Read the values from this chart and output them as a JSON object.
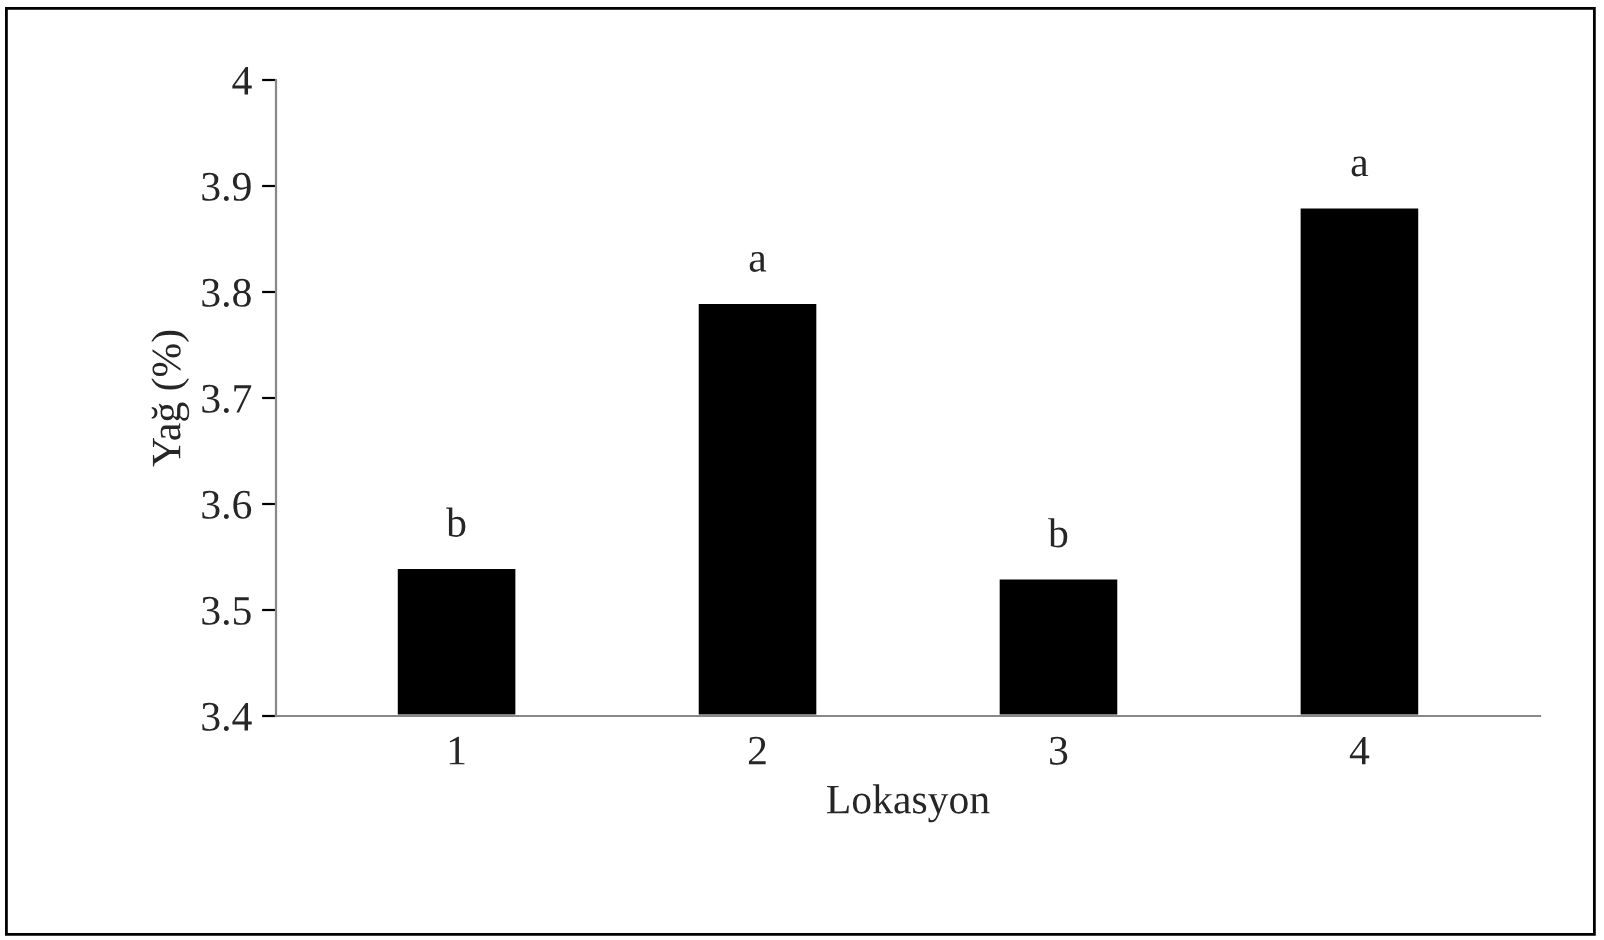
{
  "chart_data": {
    "type": "bar",
    "xlabel": "Lokasyon",
    "ylabel": "Yağ (%)",
    "categories": [
      "1",
      "2",
      "3",
      "4"
    ],
    "values": [
      3.54,
      3.79,
      3.53,
      3.88
    ],
    "color": "#000000",
    "ylim": [
      3.4,
      4
    ],
    "yticks": [
      3.4,
      3.5,
      3.6,
      3.7,
      3.8,
      3.9,
      4
    ],
    "grid": false,
    "legend": false,
    "annotations": [
      {
        "text": "b",
        "x": "1",
        "y": 3.54
      },
      {
        "text": "a",
        "x": "2",
        "y": 3.79
      },
      {
        "text": "b",
        "x": "3",
        "y": 3.53
      },
      {
        "text": "a",
        "x": "4",
        "y": 3.88
      }
    ]
  }
}
